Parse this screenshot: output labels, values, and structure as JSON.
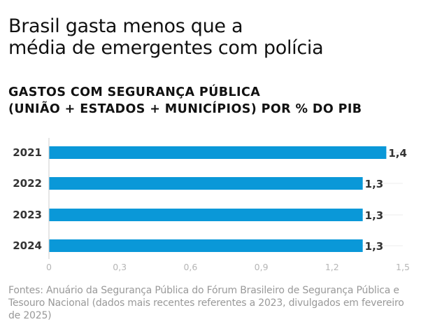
{
  "title_lines": [
    "Brasil gasta menos que a",
    "média de emergentes com polícia"
  ],
  "chart_data": {
    "type": "bar",
    "orientation": "horizontal",
    "title_lines": [
      "GASTOS COM SEGURANÇA PÚBLICA",
      "(UNIÃO + ESTADOS + MUNICÍPIOS) POR % DO PIB"
    ],
    "categories": [
      "2021",
      "2022",
      "2023",
      "2024"
    ],
    "values": [
      1.43,
      1.33,
      1.33,
      1.33
    ],
    "data_labels": [
      "1,4",
      "1,3",
      "1,3",
      "1,3"
    ],
    "xlim": [
      0,
      1.5
    ],
    "x_ticks": [
      0,
      0.3,
      0.6,
      0.9,
      1.2,
      1.5
    ],
    "x_tick_labels": [
      "0",
      "0,3",
      "0,6",
      "0,9",
      "1,2",
      "1,5"
    ],
    "grid": true,
    "bar_color": "#0a98d8"
  },
  "source_lines": [
    "Fontes: Anuário da Segurança Pública do Fórum Brasileiro de Segurança Pública e",
    "Tesouro Nacional (dados mais recentes referentes a 2023, divulgados em fevereiro",
    "de 2025)"
  ]
}
